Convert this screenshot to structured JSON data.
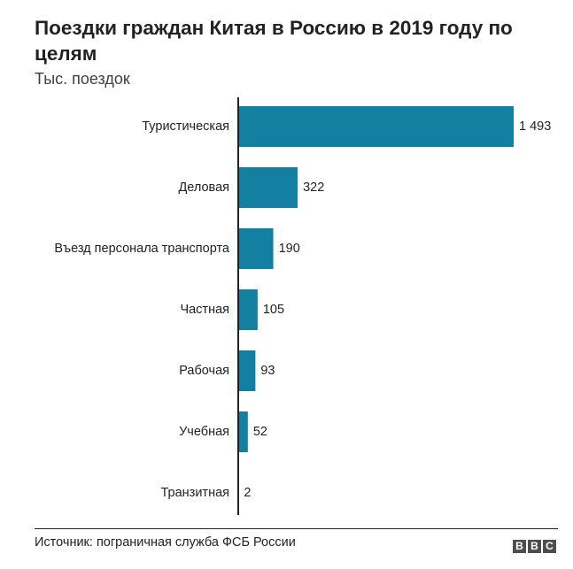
{
  "chart_data": {
    "type": "bar",
    "orientation": "horizontal",
    "title": "Поездки граждан Китая в Россию в 2019 году по целям",
    "subtitle": "Тыс. поездок",
    "categories": [
      "Туристическая",
      "Деловая",
      "Въезд персонала транспорта",
      "Частная",
      "Рабочая",
      "Учебная",
      "Транзитная"
    ],
    "values": [
      1493,
      322,
      190,
      105,
      93,
      52,
      2
    ],
    "value_labels": [
      "1 493",
      "322",
      "190",
      "105",
      "93",
      "52",
      "2"
    ],
    "bar_color": "#1380a1",
    "grid": false,
    "legend": "none"
  },
  "footer": {
    "source": "Источник: пограничная служба ФСБ России",
    "logo_letters": [
      "B",
      "B",
      "C"
    ]
  }
}
